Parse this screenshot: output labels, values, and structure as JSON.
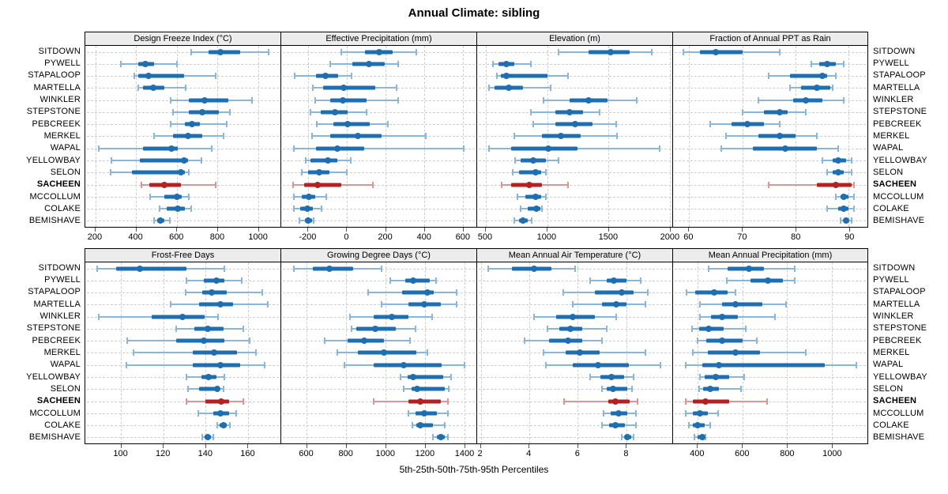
{
  "title": "Annual Climate: sibling",
  "caption": "5th-25th-50th-75th-95th Percentiles",
  "highlight_station": "SACHEEN",
  "colors": {
    "series": "#1f6eb0",
    "series_light": "#8ab6d9",
    "highlight": "#b22222",
    "highlight_light": "#dc9494",
    "strip_bg": "#ececec",
    "grid": "#cdcdcd",
    "panel_border": "#000000"
  },
  "stations": [
    "SITDOWN",
    "PYWELL",
    "STAPALOOP",
    "MARTELLA",
    "WINKLER",
    "STEPSTONE",
    "PEBCREEK",
    "MERKEL",
    "WAPAL",
    "YELLOWBAY",
    "SELON",
    "SACHEEN",
    "MCCOLLUM",
    "COLAKE",
    "BEMISHAVE"
  ],
  "chart_data": {
    "type": "dotplot-percentile-trellis",
    "layout": {
      "rows": 2,
      "cols": 4
    },
    "percentiles": [
      5,
      25,
      50,
      75,
      95
    ],
    "grid": "dashed",
    "panels": [
      {
        "title": "Design Freeze Index (°C)",
        "row": 0,
        "col": 0,
        "axis": {
          "min": 150,
          "max": 1110,
          "ticks": [
            200,
            400,
            600,
            800,
            1000
          ]
        },
        "values": [
          [
            670,
            755,
            815,
            910,
            1050
          ],
          [
            325,
            410,
            445,
            490,
            600
          ],
          [
            390,
            410,
            460,
            635,
            790
          ],
          [
            410,
            435,
            485,
            540,
            645
          ],
          [
            570,
            660,
            735,
            855,
            970
          ],
          [
            580,
            660,
            725,
            805,
            860
          ],
          [
            570,
            640,
            675,
            715,
            845
          ],
          [
            490,
            580,
            655,
            725,
            830
          ],
          [
            215,
            435,
            575,
            605,
            770
          ],
          [
            280,
            420,
            635,
            655,
            720
          ],
          [
            275,
            380,
            620,
            640,
            660
          ],
          [
            425,
            465,
            540,
            620,
            790
          ],
          [
            470,
            540,
            600,
            625,
            660
          ],
          [
            515,
            550,
            605,
            640,
            670
          ],
          [
            490,
            505,
            520,
            540,
            565
          ]
        ]
      },
      {
        "title": "Effective Precipitation (mm)",
        "row": 0,
        "col": 1,
        "axis": {
          "min": -340,
          "max": 670,
          "ticks": [
            -200,
            0,
            200,
            400,
            600
          ]
        },
        "values": [
          [
            -30,
            95,
            165,
            235,
            360
          ],
          [
            -85,
            30,
            115,
            195,
            265
          ],
          [
            -270,
            -160,
            -110,
            -45,
            25
          ],
          [
            -175,
            -125,
            -15,
            145,
            255
          ],
          [
            -165,
            -85,
            -20,
            100,
            265
          ],
          [
            -190,
            -135,
            -60,
            5,
            100
          ],
          [
            -155,
            -70,
            5,
            120,
            210
          ],
          [
            -180,
            -85,
            55,
            180,
            410
          ],
          [
            -275,
            -160,
            -50,
            90,
            605
          ],
          [
            -215,
            -190,
            -100,
            -50,
            20
          ],
          [
            -235,
            -200,
            -145,
            -90,
            0
          ],
          [
            -280,
            -220,
            -150,
            -30,
            135
          ],
          [
            -275,
            -235,
            -195,
            -165,
            -105
          ],
          [
            -275,
            -240,
            -205,
            -175,
            -130
          ],
          [
            -245,
            -218,
            -200,
            -182,
            -172
          ]
        ]
      },
      {
        "title": "Elevation (m)",
        "row": 0,
        "col": 2,
        "axis": {
          "min": 430,
          "max": 2020,
          "ticks": [
            500,
            1000,
            1500,
            2000
          ]
        },
        "values": [
          [
            1090,
            1335,
            1520,
            1675,
            1850
          ],
          [
            560,
            605,
            665,
            735,
            870
          ],
          [
            590,
            620,
            670,
            1005,
            1170
          ],
          [
            525,
            570,
            690,
            805,
            1030
          ],
          [
            970,
            1185,
            1335,
            1490,
            1730
          ],
          [
            865,
            1070,
            1185,
            1295,
            1430
          ],
          [
            890,
            1070,
            1230,
            1370,
            1560
          ],
          [
            730,
            955,
            1110,
            1275,
            1570
          ],
          [
            525,
            705,
            1010,
            1250,
            1920
          ],
          [
            740,
            785,
            890,
            990,
            1090
          ],
          [
            720,
            770,
            905,
            950,
            990
          ],
          [
            630,
            710,
            855,
            955,
            1170
          ],
          [
            760,
            820,
            905,
            950,
            990
          ],
          [
            785,
            845,
            910,
            945,
            960
          ],
          [
            730,
            770,
            805,
            845,
            875
          ]
        ]
      },
      {
        "title": "Fraction of Annual PPT as Rain",
        "row": 0,
        "col": 3,
        "axis": {
          "min": 57,
          "max": 93.5,
          "ticks": [
            60,
            70,
            80,
            90
          ]
        },
        "values": [
          [
            59,
            62,
            65,
            70,
            77
          ],
          [
            83,
            84.5,
            86,
            87.5,
            89
          ],
          [
            75,
            79,
            85,
            86,
            87.5
          ],
          [
            79,
            81,
            84,
            86.5,
            87
          ],
          [
            73,
            79.5,
            82,
            85,
            89
          ],
          [
            70,
            74,
            77,
            78.5,
            82
          ],
          [
            64,
            68,
            71,
            74,
            77
          ],
          [
            67,
            73,
            77,
            80,
            84
          ],
          [
            66,
            72,
            78,
            84,
            88
          ],
          [
            85,
            87,
            88,
            89.5,
            90.5
          ],
          [
            86,
            87,
            88,
            89,
            90.5
          ],
          [
            75,
            84,
            87.5,
            90.5,
            91
          ],
          [
            87.5,
            88.5,
            89,
            90,
            91
          ],
          [
            86,
            88,
            89,
            90,
            91
          ],
          [
            88.5,
            89,
            89.5,
            90,
            90.5
          ]
        ]
      },
      {
        "title": "Frost-Free Days",
        "row": 1,
        "col": 0,
        "axis": {
          "min": 83,
          "max": 175.5,
          "ticks": [
            100,
            120,
            140,
            160
          ]
        },
        "values": [
          [
            88.5,
            97.5,
            109,
            131,
            149
          ],
          [
            131,
            139,
            145,
            149,
            157
          ],
          [
            130.5,
            138.5,
            143,
            150,
            167
          ],
          [
            123.5,
            137,
            147,
            153,
            169.5
          ],
          [
            89.5,
            114.5,
            129,
            139.5,
            146
          ],
          [
            126,
            134.5,
            141,
            148.5,
            158
          ],
          [
            103,
            126,
            139,
            149,
            161
          ],
          [
            106,
            134,
            144,
            155,
            164
          ],
          [
            102.5,
            134,
            147,
            156.5,
            168
          ],
          [
            131,
            138,
            141.5,
            145,
            149
          ],
          [
            131.5,
            137,
            145.5,
            146.5,
            148.5
          ],
          [
            131,
            140,
            147.5,
            151,
            158
          ],
          [
            136.5,
            143.5,
            147,
            151,
            154.5
          ],
          [
            145.5,
            146.5,
            148.5,
            150,
            151.5
          ],
          [
            138.5,
            139.5,
            141,
            142.5,
            143.5
          ]
        ]
      },
      {
        "title": "Growing Degree Days (°C)",
        "row": 1,
        "col": 1,
        "axis": {
          "min": 470,
          "max": 1460,
          "ticks": [
            600,
            800,
            1000,
            1200,
            1400
          ]
        },
        "values": [
          [
            535,
            630,
            715,
            835,
            980
          ],
          [
            1025,
            1100,
            1140,
            1225,
            1255
          ],
          [
            910,
            1085,
            1210,
            1245,
            1360
          ],
          [
            980,
            1115,
            1195,
            1280,
            1360
          ],
          [
            820,
            940,
            1030,
            1115,
            1235
          ],
          [
            825,
            850,
            945,
            1050,
            1150
          ],
          [
            690,
            805,
            890,
            990,
            1125
          ],
          [
            755,
            860,
            990,
            1155,
            1210
          ],
          [
            790,
            940,
            1090,
            1285,
            1400
          ],
          [
            1075,
            1110,
            1140,
            1290,
            1330
          ],
          [
            1090,
            1130,
            1160,
            1300,
            1320
          ],
          [
            940,
            1115,
            1175,
            1280,
            1315
          ],
          [
            1115,
            1150,
            1195,
            1260,
            1315
          ],
          [
            1135,
            1155,
            1175,
            1240,
            1300
          ],
          [
            1240,
            1260,
            1280,
            1300,
            1315
          ]
        ]
      },
      {
        "title": "Mean Annual Air Temperature (°C)",
        "row": 1,
        "col": 2,
        "axis": {
          "min": 1.85,
          "max": 9.9,
          "ticks": [
            2,
            4,
            6,
            8
          ]
        },
        "values": [
          [
            2.3,
            3.3,
            4.2,
            4.9,
            5.9
          ],
          [
            6.5,
            7.2,
            7.5,
            8.0,
            8.6
          ],
          [
            5.4,
            6.7,
            7.8,
            8.3,
            8.9
          ],
          [
            5.8,
            7.0,
            7.6,
            8.0,
            8.8
          ],
          [
            4.2,
            5.1,
            5.8,
            6.7,
            7.6
          ],
          [
            4.75,
            5.25,
            5.7,
            6.2,
            7.2
          ],
          [
            3.8,
            4.8,
            5.6,
            6.2,
            7.0
          ],
          [
            4.6,
            5.5,
            6.1,
            6.9,
            8.8
          ],
          [
            4.7,
            5.8,
            6.85,
            8.1,
            9.4
          ],
          [
            6.5,
            6.95,
            7.4,
            7.9,
            8.3
          ],
          [
            7.0,
            7.2,
            7.45,
            8.05,
            8.25
          ],
          [
            5.45,
            7.25,
            7.55,
            8.15,
            8.45
          ],
          [
            7.05,
            7.35,
            7.7,
            8.05,
            8.4
          ],
          [
            7.0,
            7.3,
            7.55,
            7.95,
            8.4
          ],
          [
            7.8,
            7.95,
            8.05,
            8.2,
            8.3
          ]
        ]
      },
      {
        "title": "Mean Annual Precipitation (mm)",
        "row": 1,
        "col": 3,
        "axis": {
          "min": 290,
          "max": 1160,
          "ticks": [
            400,
            600,
            800,
            1000
          ]
        },
        "values": [
          [
            450,
            535,
            630,
            695,
            835
          ],
          [
            530,
            635,
            715,
            780,
            835
          ],
          [
            350,
            390,
            475,
            535,
            570
          ],
          [
            410,
            510,
            570,
            690,
            795
          ],
          [
            410,
            460,
            510,
            580,
            745
          ],
          [
            375,
            405,
            450,
            515,
            615
          ],
          [
            400,
            440,
            510,
            600,
            665
          ],
          [
            380,
            445,
            570,
            680,
            885
          ],
          [
            345,
            420,
            495,
            970,
            1110
          ],
          [
            410,
            430,
            480,
            540,
            610
          ],
          [
            405,
            425,
            455,
            495,
            595
          ],
          [
            345,
            380,
            435,
            540,
            710
          ],
          [
            345,
            380,
            410,
            445,
            490
          ],
          [
            360,
            380,
            400,
            430,
            455
          ],
          [
            385,
            400,
            420,
            430,
            435
          ]
        ]
      }
    ]
  }
}
